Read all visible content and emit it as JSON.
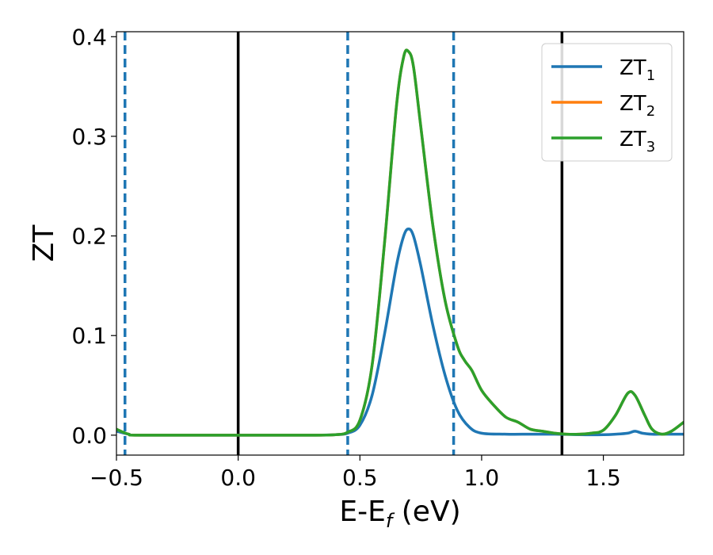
{
  "chart_data": {
    "type": "line",
    "xlabel": "E-E",
    "xlabel_sub": "f",
    "xlabel_unit": " (eV)",
    "ylabel": "ZT",
    "xlim": [
      -0.5,
      1.83
    ],
    "ylim": [
      -0.02,
      0.405
    ],
    "xticks": [
      -0.5,
      0.0,
      0.5,
      1.0,
      1.5
    ],
    "xtick_labels": [
      "−0.5",
      "0.0",
      "0.5",
      "1.0",
      "1.5"
    ],
    "yticks": [
      0.0,
      0.1,
      0.2,
      0.3,
      0.4
    ],
    "ytick_labels": [
      "0.0",
      "0.1",
      "0.2",
      "0.3",
      "0.4"
    ],
    "grid": false,
    "legend_position": "top-right",
    "colors": {
      "blue": "#1f77b4",
      "orange": "#ff7f0e",
      "green": "#2ca02c",
      "black": "#000000"
    },
    "vlines_solid": [
      0.0,
      1.33
    ],
    "vlines_dashed": [
      -0.465,
      0.45,
      0.885
    ],
    "series": [
      {
        "name": "ZT",
        "sub": "1",
        "color": "#1f77b4",
        "x": [
          -0.5,
          -0.45,
          -0.4,
          0.0,
          0.3,
          0.4,
          0.45,
          0.5,
          0.55,
          0.6,
          0.65,
          0.68,
          0.7,
          0.72,
          0.75,
          0.8,
          0.85,
          0.9,
          0.95,
          1.0,
          1.1,
          1.2,
          1.3,
          1.4,
          1.5,
          1.55,
          1.6,
          1.63,
          1.66,
          1.7,
          1.75,
          1.83
        ],
        "y": [
          0.004,
          0.001,
          0.0,
          0.0,
          0.0,
          0.0005,
          0.002,
          0.01,
          0.04,
          0.1,
          0.17,
          0.2,
          0.207,
          0.2,
          0.17,
          0.11,
          0.06,
          0.025,
          0.008,
          0.002,
          0.001,
          0.001,
          0.001,
          0.0005,
          0.0005,
          0.001,
          0.002,
          0.004,
          0.002,
          0.001,
          0.001,
          0.001
        ]
      },
      {
        "name": "ZT",
        "sub": "2",
        "color": "#ff7f0e",
        "x": [
          -0.5,
          -0.45,
          -0.4,
          0.0,
          0.3,
          0.4,
          0.45,
          0.5,
          0.55,
          0.6,
          0.65,
          0.68,
          0.7,
          0.72,
          0.75,
          0.8,
          0.85,
          0.9,
          0.93,
          0.96,
          1.0,
          1.05,
          1.1,
          1.15,
          1.2,
          1.25,
          1.3,
          1.35,
          1.4,
          1.45,
          1.5,
          1.55,
          1.6,
          1.63,
          1.67,
          1.7,
          1.74,
          1.78,
          1.83
        ],
        "y": [
          0.006,
          0.001,
          0.0,
          0.0,
          0.0,
          0.0005,
          0.003,
          0.015,
          0.07,
          0.19,
          0.33,
          0.38,
          0.385,
          0.37,
          0.31,
          0.21,
          0.135,
          0.09,
          0.075,
          0.065,
          0.045,
          0.03,
          0.018,
          0.013,
          0.006,
          0.004,
          0.002,
          0.001,
          0.001,
          0.002,
          0.005,
          0.02,
          0.042,
          0.04,
          0.02,
          0.006,
          0.001,
          0.004,
          0.013
        ]
      },
      {
        "name": "ZT",
        "sub": "3",
        "color": "#2ca02c",
        "x": [
          -0.5,
          -0.45,
          -0.4,
          0.0,
          0.3,
          0.4,
          0.45,
          0.5,
          0.55,
          0.6,
          0.65,
          0.68,
          0.7,
          0.72,
          0.75,
          0.8,
          0.85,
          0.9,
          0.93,
          0.96,
          1.0,
          1.05,
          1.1,
          1.15,
          1.2,
          1.25,
          1.3,
          1.35,
          1.4,
          1.45,
          1.5,
          1.55,
          1.6,
          1.63,
          1.67,
          1.7,
          1.74,
          1.78,
          1.83
        ],
        "y": [
          0.006,
          0.001,
          0.0,
          0.0,
          0.0,
          0.0005,
          0.003,
          0.015,
          0.07,
          0.19,
          0.33,
          0.38,
          0.385,
          0.37,
          0.31,
          0.21,
          0.135,
          0.09,
          0.075,
          0.065,
          0.045,
          0.03,
          0.018,
          0.013,
          0.006,
          0.004,
          0.002,
          0.001,
          0.001,
          0.002,
          0.005,
          0.02,
          0.042,
          0.04,
          0.02,
          0.006,
          0.001,
          0.004,
          0.013
        ]
      }
    ]
  }
}
